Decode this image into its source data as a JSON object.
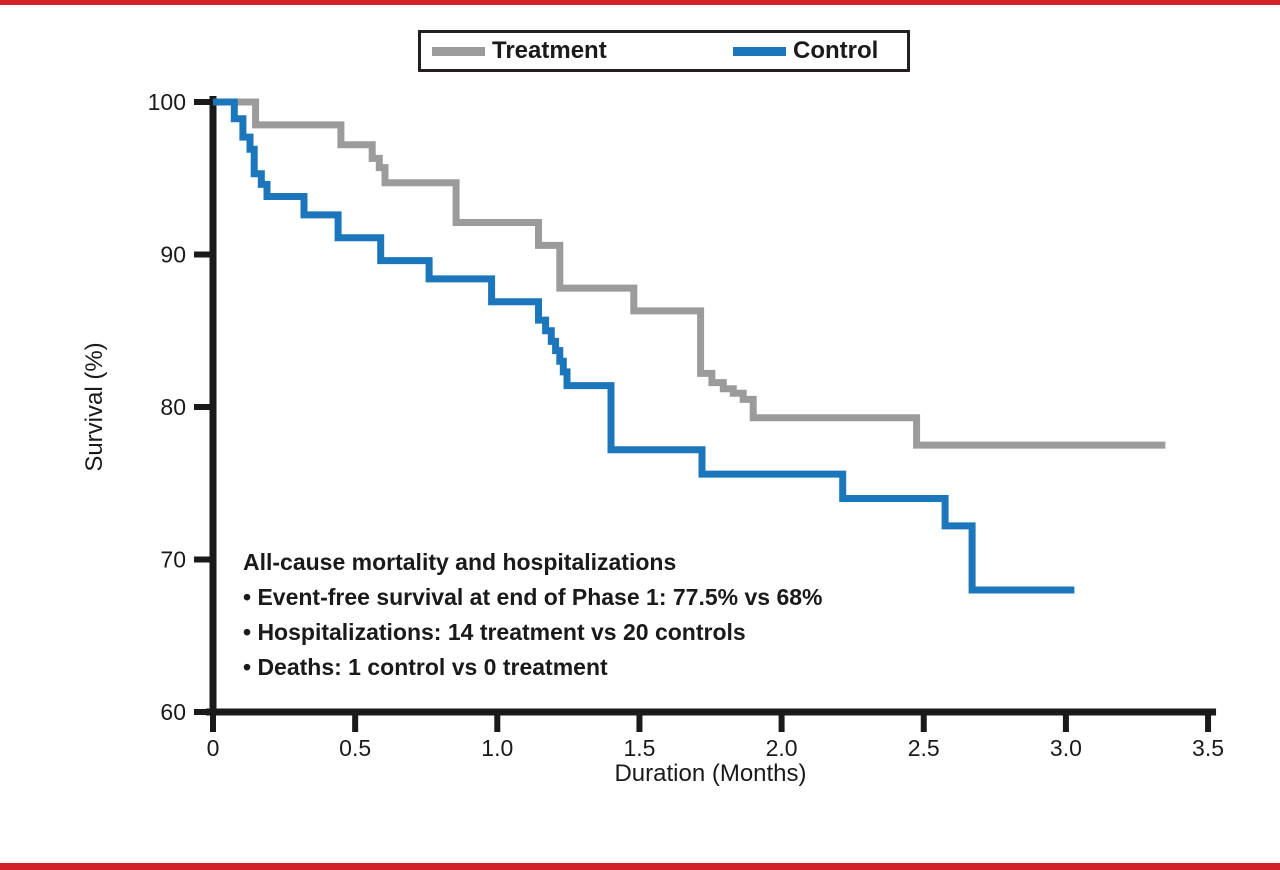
{
  "frame": {
    "background": "#ffffff",
    "top_bar_color": "#d2232a",
    "bottom_bar_color": "#d2232a"
  },
  "legend": {
    "border_color": "#231f20"
  },
  "annotation": {
    "lines": [
      "All-cause mortality and hospitalizations",
      "• Event-free survival at end of Phase 1: 77.5% vs 68%",
      "• Hospitalizations: 14 treatment vs 20 controls",
      "• Deaths: 1 control vs 0 treatment"
    ]
  },
  "chart_data": {
    "type": "line",
    "step": true,
    "title": "",
    "xlabel": "Duration (Months)",
    "ylabel": "Survival (%)",
    "xlim": [
      0,
      3.5
    ],
    "ylim": [
      60,
      100
    ],
    "grid": false,
    "legend_position": "top-center",
    "axis_color": "#1a1a1a",
    "x_ticks": {
      "values": [
        0,
        0.5,
        1.0,
        1.5,
        2.0,
        2.5,
        3.0,
        3.5
      ],
      "labels": [
        "0",
        "0.5",
        "1.0",
        "1.5",
        "2.0",
        "2.5",
        "3.0",
        "3.5"
      ]
    },
    "y_ticks": {
      "values": [
        100,
        90,
        80,
        70,
        60
      ],
      "labels": [
        "100",
        "90",
        "80",
        "70",
        "60"
      ]
    },
    "series": [
      {
        "name": "Treatment",
        "color": "#9b9b9b",
        "points": [
          [
            0,
            100
          ],
          [
            0.15,
            98.5
          ],
          [
            0.45,
            97.2
          ],
          [
            0.56,
            96.3
          ],
          [
            0.585,
            95.7
          ],
          [
            0.605,
            94.7
          ],
          [
            0.855,
            92.1
          ],
          [
            1.145,
            90.6
          ],
          [
            1.22,
            87.8
          ],
          [
            1.48,
            86.3
          ],
          [
            1.715,
            82.2
          ],
          [
            1.755,
            81.6
          ],
          [
            1.795,
            81.2
          ],
          [
            1.83,
            80.9
          ],
          [
            1.865,
            80.5
          ],
          [
            1.9,
            79.3
          ],
          [
            2.475,
            77.5
          ],
          [
            3.35,
            77.5
          ]
        ]
      },
      {
        "name": "Control",
        "color": "#1b76bc",
        "points": [
          [
            0,
            100
          ],
          [
            0.075,
            98.9
          ],
          [
            0.105,
            97.7
          ],
          [
            0.13,
            96.9
          ],
          [
            0.145,
            95.3
          ],
          [
            0.17,
            94.6
          ],
          [
            0.19,
            93.8
          ],
          [
            0.32,
            92.6
          ],
          [
            0.44,
            91.1
          ],
          [
            0.59,
            89.6
          ],
          [
            0.76,
            88.4
          ],
          [
            0.98,
            86.9
          ],
          [
            1.145,
            85.7
          ],
          [
            1.17,
            85.0
          ],
          [
            1.19,
            84.3
          ],
          [
            1.205,
            83.7
          ],
          [
            1.22,
            83.0
          ],
          [
            1.232,
            82.3
          ],
          [
            1.245,
            81.4
          ],
          [
            1.4,
            77.2
          ],
          [
            1.72,
            75.6
          ],
          [
            2.215,
            74.0
          ],
          [
            2.575,
            72.2
          ],
          [
            2.67,
            68.0
          ],
          [
            3.03,
            68.0
          ]
        ]
      }
    ]
  }
}
